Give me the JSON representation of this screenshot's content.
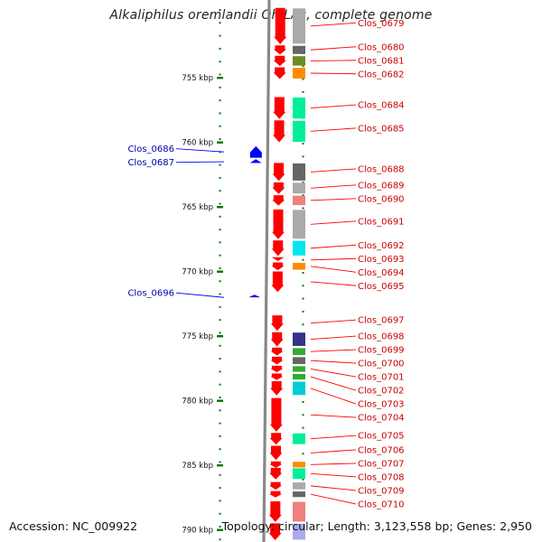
{
  "title": "Alkaliphilus oremlandii OhILAs, complete genome",
  "footer": {
    "accession": "Accession: NC_009922",
    "summary": "Topology: circular; Length: 3,123,558 bp; Genes: 2,950"
  },
  "colors": {
    "forward_gene": "#ff0000",
    "reverse_gene": "#0000ff",
    "label_forward": "#cc0000",
    "label_reverse": "#0000aa",
    "tick": "#007700",
    "backbone": "#888888"
  },
  "scale": {
    "unit": "kbp",
    "visible_range_kbp": [
      750,
      790
    ],
    "ticks": [
      {
        "kbp": 755,
        "label": "755 kbp"
      },
      {
        "kbp": 760,
        "label": "760 kbp"
      },
      {
        "kbp": 765,
        "label": "765 kbp"
      },
      {
        "kbp": 770,
        "label": "770 kbp"
      },
      {
        "kbp": 775,
        "label": "775 kbp"
      },
      {
        "kbp": 780,
        "label": "780 kbp"
      },
      {
        "kbp": 785,
        "label": "785 kbp"
      },
      {
        "kbp": 790,
        "label": "790 kbp"
      }
    ]
  },
  "genes": [
    {
      "id": "Clos_0679",
      "strand": "+",
      "start_kbp": 749.6,
      "end_kbp": 752.4,
      "cog_color": "#aaaaaa"
    },
    {
      "id": "Clos_0680",
      "strand": "+",
      "start_kbp": 752.5,
      "end_kbp": 753.2,
      "cog_color": "#666666"
    },
    {
      "id": "Clos_0681",
      "strand": "+",
      "start_kbp": 753.3,
      "end_kbp": 754.1,
      "cog_color": "#6b8e23"
    },
    {
      "id": "Clos_0682",
      "strand": "+",
      "start_kbp": 754.2,
      "end_kbp": 755.1,
      "cog_color": "#ff8c00"
    },
    {
      "id": "Clos_0684",
      "strand": "+",
      "start_kbp": 756.5,
      "end_kbp": 758.2,
      "cog_color": "#00ee99"
    },
    {
      "id": "Clos_0685",
      "strand": "+",
      "start_kbp": 758.3,
      "end_kbp": 760.0,
      "cog_color": "#00ee99"
    },
    {
      "id": "Clos_0686",
      "strand": "-",
      "start_kbp": 760.3,
      "end_kbp": 761.2,
      "cog_color": ""
    },
    {
      "id": "Clos_0687",
      "strand": "-",
      "start_kbp": 761.3,
      "end_kbp": 761.6,
      "cog_color": ""
    },
    {
      "id": "Clos_0688",
      "strand": "+",
      "start_kbp": 761.6,
      "end_kbp": 763.0,
      "cog_color": "#666666"
    },
    {
      "id": "Clos_0689",
      "strand": "+",
      "start_kbp": 763.1,
      "end_kbp": 764.0,
      "cog_color": "#aaaaaa"
    },
    {
      "id": "Clos_0690",
      "strand": "+",
      "start_kbp": 764.1,
      "end_kbp": 764.9,
      "cog_color": "#f08080"
    },
    {
      "id": "Clos_0691",
      "strand": "+",
      "start_kbp": 765.2,
      "end_kbp": 767.5,
      "cog_color": "#aaaaaa"
    },
    {
      "id": "Clos_0692",
      "strand": "+",
      "start_kbp": 767.6,
      "end_kbp": 768.8,
      "cog_color": "#00e5ee"
    },
    {
      "id": "Clos_0693",
      "strand": "+",
      "start_kbp": 768.9,
      "end_kbp": 769.2,
      "cog_color": ""
    },
    {
      "id": "Clos_0694",
      "strand": "+",
      "start_kbp": 769.3,
      "end_kbp": 769.9,
      "cog_color": "#ff8c00"
    },
    {
      "id": "Clos_0695",
      "strand": "+",
      "start_kbp": 770.0,
      "end_kbp": 771.6,
      "cog_color": ""
    },
    {
      "id": "Clos_0696",
      "strand": "-",
      "start_kbp": 771.8,
      "end_kbp": 772.0,
      "cog_color": ""
    },
    {
      "id": "Clos_0697",
      "strand": "+",
      "start_kbp": 773.4,
      "end_kbp": 774.6,
      "cog_color": ""
    },
    {
      "id": "Clos_0698",
      "strand": "+",
      "start_kbp": 774.7,
      "end_kbp": 775.8,
      "cog_color": "#333388"
    },
    {
      "id": "Clos_0699",
      "strand": "+",
      "start_kbp": 775.9,
      "end_kbp": 776.5,
      "cog_color": "#33aa33"
    },
    {
      "id": "Clos_0700",
      "strand": "+",
      "start_kbp": 776.6,
      "end_kbp": 777.2,
      "cog_color": "#666666"
    },
    {
      "id": "Clos_0701",
      "strand": "+",
      "start_kbp": 777.3,
      "end_kbp": 777.8,
      "cog_color": "#33aa33"
    },
    {
      "id": "Clos_0702",
      "strand": "+",
      "start_kbp": 777.9,
      "end_kbp": 778.4,
      "cog_color": "#33aa33"
    },
    {
      "id": "Clos_0703",
      "strand": "+",
      "start_kbp": 778.5,
      "end_kbp": 779.6,
      "cog_color": "#00ced1"
    },
    {
      "id": "Clos_0704",
      "strand": "+",
      "start_kbp": 779.8,
      "end_kbp": 782.4,
      "cog_color": ""
    },
    {
      "id": "Clos_0705",
      "strand": "+",
      "start_kbp": 782.5,
      "end_kbp": 783.4,
      "cog_color": "#00ee99"
    },
    {
      "id": "Clos_0706",
      "strand": "+",
      "start_kbp": 783.5,
      "end_kbp": 784.6,
      "cog_color": ""
    },
    {
      "id": "Clos_0707",
      "strand": "+",
      "start_kbp": 784.7,
      "end_kbp": 785.2,
      "cog_color": "#ff8c00"
    },
    {
      "id": "Clos_0708",
      "strand": "+",
      "start_kbp": 785.2,
      "end_kbp": 786.1,
      "cog_color": "#00ee99"
    },
    {
      "id": "Clos_0709",
      "strand": "+",
      "start_kbp": 786.3,
      "end_kbp": 786.9,
      "cog_color": "#aaaaaa"
    },
    {
      "id": "Clos_0710",
      "strand": "+",
      "start_kbp": 787.0,
      "end_kbp": 787.5,
      "cog_color": "#666666"
    },
    {
      "id": "",
      "strand": "+",
      "start_kbp": 787.8,
      "end_kbp": 789.4,
      "cog_color": "#f08080"
    },
    {
      "id": "",
      "strand": "+",
      "start_kbp": 789.5,
      "end_kbp": 790.8,
      "cog_color": "#aaaaee"
    }
  ]
}
